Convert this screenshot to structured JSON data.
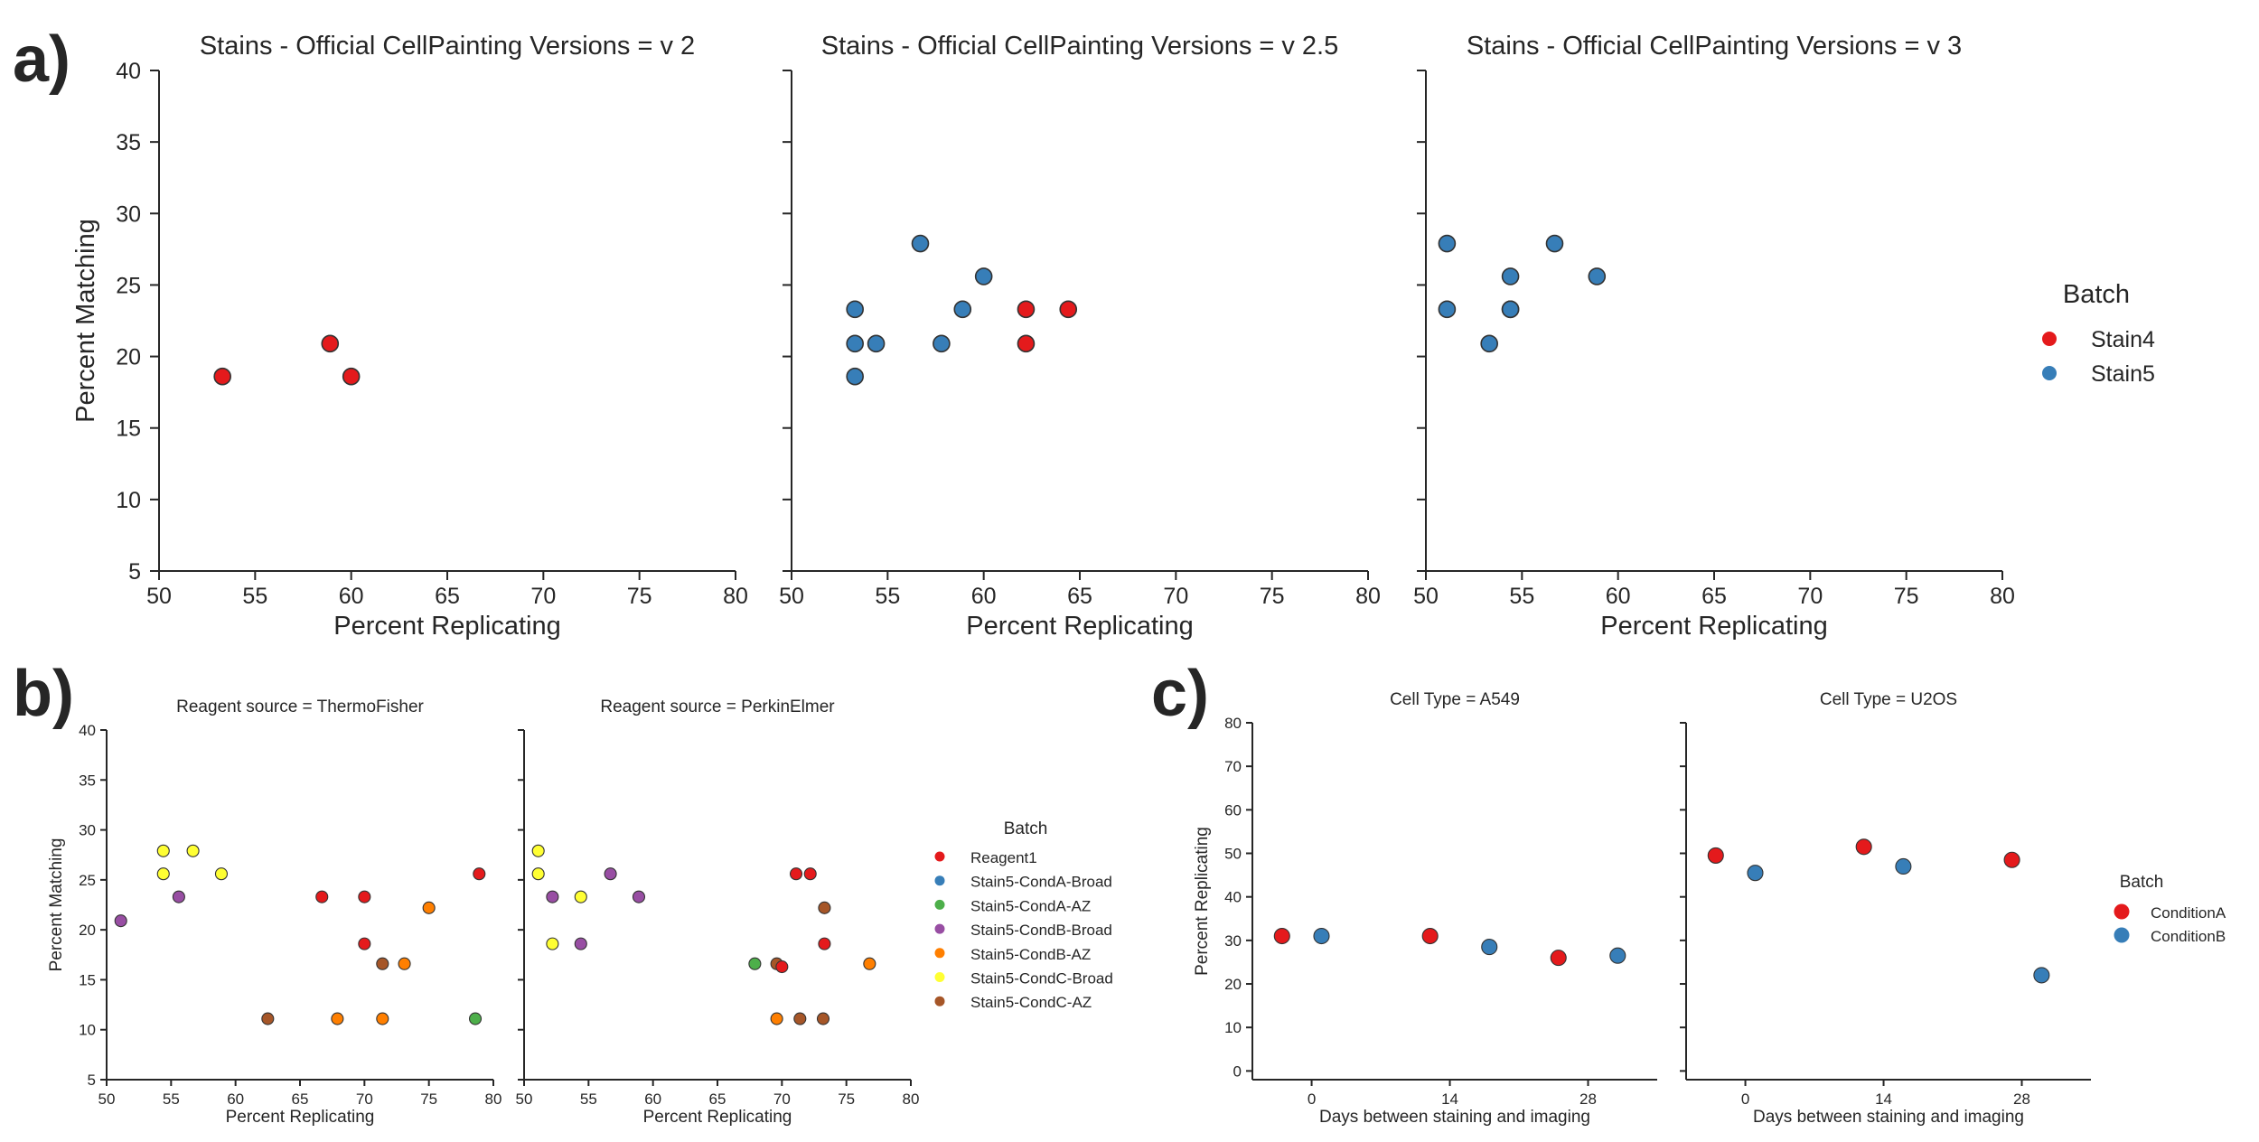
{
  "labels": {
    "a": "a)",
    "b": "b)",
    "c": "c)"
  },
  "colors": {
    "Stain4": "#e41a1c",
    "Stain5": "#377eb8",
    "Reagent1": "#e41a1c",
    "Stain5-CondA-Broad": "#377eb8",
    "Stain5-CondA-AZ": "#4daf4a",
    "Stain5-CondB-Broad": "#984ea3",
    "Stain5-CondB-AZ": "#ff7f00",
    "Stain5-CondC-Broad": "#ffff33",
    "Stain5-CondC-AZ": "#a65628",
    "ConditionA": "#e41a1c",
    "ConditionB": "#377eb8"
  },
  "chart_data": [
    {
      "type": "scatter",
      "panel": "a",
      "sharey": true,
      "xlabel": "Percent Replicating",
      "ylabel": "Percent Matching",
      "xlim": [
        50,
        80
      ],
      "ylim": [
        5,
        40
      ],
      "xticks": [
        50,
        55,
        60,
        65,
        70,
        75,
        80
      ],
      "yticks": [
        5,
        10,
        15,
        20,
        25,
        30,
        35,
        40
      ],
      "legend": {
        "title": "Batch",
        "placement": "right",
        "entries": [
          "Stain4",
          "Stain5"
        ]
      },
      "facets": [
        {
          "title": "Stains - Official CellPainting Versions = v 2",
          "points": [
            {
              "batch": "Stain4",
              "x": 53.3,
              "y": 18.6
            },
            {
              "batch": "Stain4",
              "x": 58.9,
              "y": 20.9
            },
            {
              "batch": "Stain4",
              "x": 60.0,
              "y": 18.6
            }
          ]
        },
        {
          "title": "Stains - Official CellPainting Versions = v 2.5",
          "points": [
            {
              "batch": "Stain5",
              "x": 53.3,
              "y": 23.3
            },
            {
              "batch": "Stain5",
              "x": 53.3,
              "y": 20.9
            },
            {
              "batch": "Stain5",
              "x": 53.3,
              "y": 18.6
            },
            {
              "batch": "Stain5",
              "x": 54.4,
              "y": 20.9
            },
            {
              "batch": "Stain5",
              "x": 56.7,
              "y": 27.9
            },
            {
              "batch": "Stain5",
              "x": 57.8,
              "y": 20.9
            },
            {
              "batch": "Stain5",
              "x": 58.9,
              "y": 23.3
            },
            {
              "batch": "Stain5",
              "x": 60.0,
              "y": 25.6
            },
            {
              "batch": "Stain4",
              "x": 62.2,
              "y": 23.3
            },
            {
              "batch": "Stain4",
              "x": 62.2,
              "y": 20.9
            },
            {
              "batch": "Stain4",
              "x": 64.4,
              "y": 23.3
            }
          ]
        },
        {
          "title": "Stains - Official CellPainting Versions = v 3",
          "points": [
            {
              "batch": "Stain5",
              "x": 51.1,
              "y": 27.9
            },
            {
              "batch": "Stain5",
              "x": 51.1,
              "y": 23.3
            },
            {
              "batch": "Stain5",
              "x": 53.3,
              "y": 20.9
            },
            {
              "batch": "Stain5",
              "x": 54.4,
              "y": 25.6
            },
            {
              "batch": "Stain5",
              "x": 54.4,
              "y": 23.3
            },
            {
              "batch": "Stain5",
              "x": 54.4,
              "y": 23.3
            },
            {
              "batch": "Stain5",
              "x": 56.7,
              "y": 27.9
            },
            {
              "batch": "Stain5",
              "x": 58.9,
              "y": 25.6
            }
          ]
        }
      ]
    },
    {
      "type": "scatter",
      "panel": "b",
      "sharey": true,
      "xlabel": "Percent Replicating",
      "ylabel": "Percent Matching",
      "xlim": [
        50,
        80
      ],
      "ylim": [
        5,
        40
      ],
      "xticks": [
        50,
        55,
        60,
        65,
        70,
        75,
        80
      ],
      "yticks": [
        5,
        10,
        15,
        20,
        25,
        30,
        35,
        40
      ],
      "legend": {
        "title": "Batch",
        "placement": "right",
        "entries": [
          "Reagent1",
          "Stain5-CondA-Broad",
          "Stain5-CondA-AZ",
          "Stain5-CondB-Broad",
          "Stain5-CondB-AZ",
          "Stain5-CondC-Broad",
          "Stain5-CondC-AZ"
        ]
      },
      "facets": [
        {
          "title": "Reagent source = ThermoFisher",
          "points": [
            {
              "batch": "Stain5-CondC-Broad",
              "x": 54.4,
              "y": 27.9
            },
            {
              "batch": "Stain5-CondC-Broad",
              "x": 56.7,
              "y": 27.9
            },
            {
              "batch": "Stain5-CondC-Broad",
              "x": 54.4,
              "y": 25.6
            },
            {
              "batch": "Stain5-CondC-Broad",
              "x": 58.9,
              "y": 25.6
            },
            {
              "batch": "Stain5-CondB-Broad",
              "x": 55.6,
              "y": 23.3
            },
            {
              "batch": "Stain5-CondB-Broad",
              "x": 51.1,
              "y": 20.9
            },
            {
              "batch": "Reagent1",
              "x": 66.7,
              "y": 23.3
            },
            {
              "batch": "Reagent1",
              "x": 70.0,
              "y": 23.3
            },
            {
              "batch": "Reagent1",
              "x": 78.9,
              "y": 25.6
            },
            {
              "batch": "Reagent1",
              "x": 70.0,
              "y": 18.6
            },
            {
              "batch": "Stain5-CondC-AZ",
              "x": 71.4,
              "y": 16.6
            },
            {
              "batch": "Stain5-CondB-AZ",
              "x": 73.1,
              "y": 16.6
            },
            {
              "batch": "Stain5-CondB-AZ",
              "x": 75.0,
              "y": 22.2
            },
            {
              "batch": "Stain5-CondC-AZ",
              "x": 62.5,
              "y": 11.1
            },
            {
              "batch": "Stain5-CondB-AZ",
              "x": 67.9,
              "y": 11.1
            },
            {
              "batch": "Stain5-CondB-AZ",
              "x": 71.4,
              "y": 11.1
            },
            {
              "batch": "Stain5-CondA-AZ",
              "x": 78.6,
              "y": 11.1
            }
          ]
        },
        {
          "title": "Reagent source = PerkinElmer",
          "points": [
            {
              "batch": "Stain5-CondC-Broad",
              "x": 51.1,
              "y": 27.9
            },
            {
              "batch": "Stain5-CondC-Broad",
              "x": 51.1,
              "y": 25.6
            },
            {
              "batch": "Stain5-CondB-Broad",
              "x": 56.7,
              "y": 25.6
            },
            {
              "batch": "Stain5-CondB-Broad",
              "x": 52.2,
              "y": 23.3
            },
            {
              "batch": "Stain5-CondC-Broad",
              "x": 54.4,
              "y": 23.3
            },
            {
              "batch": "Stain5-CondB-Broad",
              "x": 58.9,
              "y": 23.3
            },
            {
              "batch": "Stain5-CondC-Broad",
              "x": 52.2,
              "y": 18.6
            },
            {
              "batch": "Stain5-CondB-Broad",
              "x": 54.4,
              "y": 18.6
            },
            {
              "batch": "Reagent1",
              "x": 71.1,
              "y": 25.6
            },
            {
              "batch": "Reagent1",
              "x": 72.2,
              "y": 25.6
            },
            {
              "batch": "Stain5-CondC-AZ",
              "x": 73.3,
              "y": 22.2
            },
            {
              "batch": "Reagent1",
              "x": 73.3,
              "y": 18.6
            },
            {
              "batch": "Stain5-CondA-AZ",
              "x": 67.9,
              "y": 16.6
            },
            {
              "batch": "Stain5-CondC-AZ",
              "x": 69.6,
              "y": 16.6
            },
            {
              "batch": "Reagent1",
              "x": 70.0,
              "y": 16.3
            },
            {
              "batch": "Stain5-CondB-AZ",
              "x": 76.8,
              "y": 16.6
            },
            {
              "batch": "Stain5-CondB-AZ",
              "x": 69.6,
              "y": 11.1
            },
            {
              "batch": "Stain5-CondC-AZ",
              "x": 71.4,
              "y": 11.1
            },
            {
              "batch": "Stain5-CondC-AZ",
              "x": 73.2,
              "y": 11.1
            }
          ]
        }
      ]
    },
    {
      "type": "scatter",
      "panel": "c",
      "sharey": true,
      "xlabel": "Days between staining and imaging",
      "ylabel": "Percent Replicating",
      "xlim": [
        -6,
        35
      ],
      "ylim": [
        -2,
        80
      ],
      "xticks": [
        0,
        14,
        28
      ],
      "yticks": [
        0,
        10,
        20,
        30,
        40,
        50,
        60,
        70,
        80
      ],
      "legend": {
        "title": "Batch",
        "placement": "right",
        "entries": [
          "ConditionA",
          "ConditionB"
        ]
      },
      "facets": [
        {
          "title": "Cell Type = A549",
          "points": [
            {
              "batch": "ConditionA",
              "x": -3,
              "y": 31
            },
            {
              "batch": "ConditionB",
              "x": 1,
              "y": 31
            },
            {
              "batch": "ConditionA",
              "x": 12,
              "y": 31
            },
            {
              "batch": "ConditionB",
              "x": 18,
              "y": 28.5
            },
            {
              "batch": "ConditionA",
              "x": 25,
              "y": 26
            },
            {
              "batch": "ConditionB",
              "x": 31,
              "y": 26.5
            }
          ]
        },
        {
          "title": "Cell Type = U2OS",
          "points": [
            {
              "batch": "ConditionA",
              "x": -3,
              "y": 49.5
            },
            {
              "batch": "ConditionB",
              "x": 1,
              "y": 45.5
            },
            {
              "batch": "ConditionA",
              "x": 12,
              "y": 51.5
            },
            {
              "batch": "ConditionB",
              "x": 16,
              "y": 47
            },
            {
              "batch": "ConditionA",
              "x": 27,
              "y": 48.5
            },
            {
              "batch": "ConditionB",
              "x": 30,
              "y": 22
            }
          ]
        }
      ]
    }
  ]
}
